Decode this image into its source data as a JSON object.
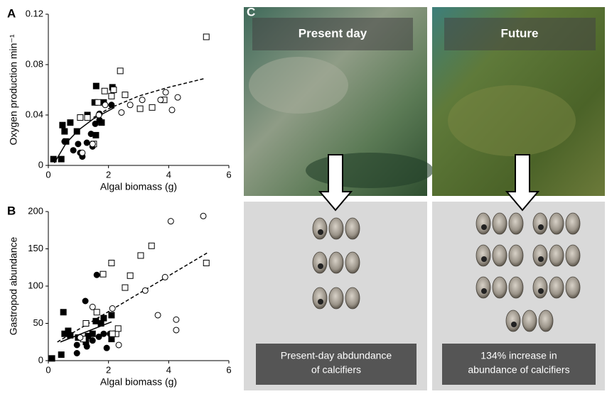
{
  "chart_data": [
    {
      "type": "scatter",
      "panel": "A",
      "xlabel": "Algal biomass (g)",
      "ylabel": "Oxygen production min⁻¹",
      "xlim": [
        0,
        6
      ],
      "ylim": [
        0,
        0.12
      ],
      "xticks": [
        0,
        2,
        4,
        6
      ],
      "yticks": [
        0,
        0.04,
        0.08,
        0.12
      ],
      "series": [
        {
          "marker": "square",
          "filled": true,
          "color": "#000000",
          "x": [
            0.17,
            0.43,
            0.47,
            0.54,
            0.73,
            0.59,
            0.95,
            1.3,
            1.54,
            1.59,
            1.84,
            2.13,
            1.77,
            1.58
          ],
          "y": [
            0.005,
            0.005,
            0.032,
            0.027,
            0.034,
            0.019,
            0.027,
            0.04,
            0.05,
            0.063,
            0.05,
            0.062,
            0.034,
            0.024
          ]
        },
        {
          "marker": "circle",
          "filled": true,
          "color": "#000000",
          "x": [
            0.54,
            0.83,
            0.99,
            1.13,
            1.06,
            1.28,
            1.42,
            1.56,
            1.7,
            1.7,
            2.1,
            1.47
          ],
          "y": [
            0.019,
            0.012,
            0.017,
            0.007,
            0.01,
            0.018,
            0.025,
            0.033,
            0.041,
            0.036,
            0.048,
            0.015
          ]
        },
        {
          "marker": "square",
          "filled": false,
          "color": "#000000",
          "x": [
            1.06,
            1.3,
            1.87,
            1.65,
            2.1,
            2.17,
            2.39,
            2.55,
            3.05,
            3.45,
            3.85,
            5.25,
            1.51
          ],
          "y": [
            0.038,
            0.038,
            0.059,
            0.05,
            0.055,
            0.06,
            0.075,
            0.056,
            0.045,
            0.046,
            0.052,
            0.102,
            0.017
          ]
        },
        {
          "marker": "circle",
          "filled": false,
          "color": "#000000",
          "x": [
            1.13,
            1.47,
            1.89,
            2.43,
            2.72,
            3.12,
            3.73,
            3.9,
            4.11,
            4.3,
            1.68
          ],
          "y": [
            0.01,
            0.017,
            0.048,
            0.042,
            0.048,
            0.052,
            0.052,
            0.058,
            0.044,
            0.054,
            0.04
          ]
        }
      ],
      "fits": [
        {
          "dashed": true,
          "x": [
            1.5,
            2,
            3,
            4,
            5.2
          ],
          "y": [
            0.038,
            0.045,
            0.055,
            0.062,
            0.069
          ]
        },
        {
          "dashed": false,
          "x": [
            0.2,
            0.6,
            1,
            1.5,
            2.2
          ],
          "y": [
            0.002,
            0.018,
            0.028,
            0.037,
            0.046
          ]
        }
      ]
    },
    {
      "type": "scatter",
      "panel": "B",
      "xlabel": "Algal biomass (g)",
      "ylabel": "Gastropod abundance",
      "xlim": [
        0,
        6
      ],
      "ylim": [
        0,
        200
      ],
      "xticks": [
        0,
        2,
        4,
        6
      ],
      "yticks": [
        0,
        50,
        100,
        150,
        200
      ],
      "series": [
        {
          "marker": "square",
          "filled": true,
          "color": "#000000",
          "x": [
            0.12,
            0.43,
            0.5,
            0.54,
            0.66,
            0.73,
            0.99,
            1.25,
            1.32,
            1.47,
            1.58,
            1.84,
            2.1,
            2.1,
            1.75
          ],
          "y": [
            3,
            8,
            65,
            36,
            40,
            34,
            31,
            25,
            33,
            36,
            53,
            57,
            61,
            29,
            50
          ]
        },
        {
          "marker": "circle",
          "filled": true,
          "color": "#000000",
          "x": [
            0.95,
            1.04,
            1.28,
            1.47,
            1.61,
            1.23,
            1.94,
            1.68,
            1.84,
            2.05,
            0.95
          ],
          "y": [
            10,
            31,
            19,
            27,
            115,
            80,
            17,
            32,
            36,
            36,
            21
          ]
        },
        {
          "marker": "square",
          "filled": false,
          "color": "#000000",
          "x": [
            1.16,
            1.25,
            1.61,
            1.82,
            2.1,
            2.25,
            2.13,
            2.32,
            2.55,
            2.72,
            3.07,
            3.43,
            5.25
          ],
          "y": [
            29,
            50,
            65,
            116,
            131,
            36,
            36,
            43,
            98,
            114,
            141,
            154,
            131
          ]
        },
        {
          "marker": "circle",
          "filled": false,
          "color": "#000000",
          "x": [
            1.06,
            1.47,
            2.13,
            2.34,
            3.22,
            3.88,
            4.07,
            3.64,
            4.25,
            4.25,
            5.15
          ],
          "y": [
            31,
            72,
            70,
            21,
            94,
            112,
            187,
            61,
            55,
            41,
            194
          ]
        }
      ],
      "fits": [
        {
          "dashed": true,
          "x": [
            0.3,
            5.3
          ],
          "y": [
            25,
            145
          ]
        },
        {
          "dashed": false,
          "x": [
            0.4,
            2.1
          ],
          "y": [
            25,
            52
          ]
        }
      ]
    }
  ],
  "panel_c": {
    "label": "C",
    "left_title": "Present day",
    "right_title": "Future",
    "left_caption": [
      "Present-day abdundance",
      "of calcifiers"
    ],
    "right_caption": [
      "134% increase in",
      "abundance of calcifiers"
    ]
  }
}
